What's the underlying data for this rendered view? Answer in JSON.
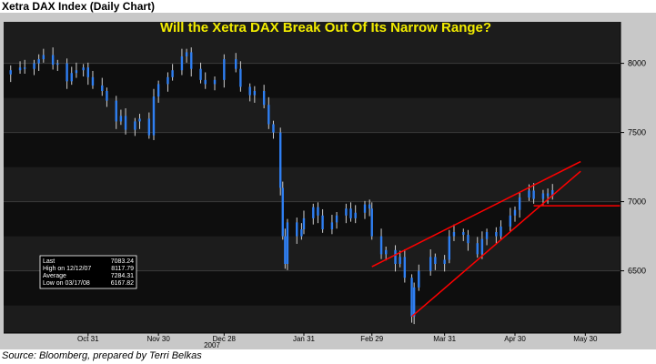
{
  "header": {
    "title": "Xetra DAX Index (Daily Chart)"
  },
  "footer": {
    "source": "Source: Bloomberg, prepared by Terri Belkas"
  },
  "chart_data": {
    "type": "candlestick",
    "title": "Will the Xetra DAX Break Out Of Its Narrow Range?",
    "xlabel": "",
    "ylabel": "",
    "ylim": [
      6050,
      8300
    ],
    "yticks": [
      6500,
      7000,
      7500,
      8000
    ],
    "ytick_labels": [
      "6500",
      "7000",
      "7500",
      "8000"
    ],
    "xticks": [
      {
        "date": "2007-10-31",
        "label": "Oct 31"
      },
      {
        "date": "2007-11-30",
        "label": "Nov 30"
      },
      {
        "date": "2007-12-28",
        "label": "Dec 28"
      },
      {
        "date": "2008-01-31",
        "label": "Jan 31"
      },
      {
        "date": "2008-02-29",
        "label": "Feb 29"
      },
      {
        "date": "2008-03-31",
        "label": "Mar 31"
      },
      {
        "date": "2008-04-30",
        "label": "Apr 30"
      },
      {
        "date": "2008-05-30",
        "label": "May 30"
      }
    ],
    "year_label": "2007",
    "xlim": [
      "2007-09-25",
      "2008-06-14"
    ],
    "stats": [
      {
        "label": "Last",
        "value": "7083.24"
      },
      {
        "label": "High on 12/12/07",
        "value": "8117.79"
      },
      {
        "label": "Average",
        "value": "7284.31"
      },
      {
        "label": "Low on 03/17/08",
        "value": "6167.82"
      }
    ],
    "closes": [
      [
        "2007-09-26",
        7920
      ],
      [
        "2007-09-28",
        7950
      ],
      [
        "2007-10-02",
        7970
      ],
      [
        "2007-10-04",
        7960
      ],
      [
        "2007-10-08",
        8000
      ],
      [
        "2007-10-10",
        8030
      ],
      [
        "2007-10-12",
        8060
      ],
      [
        "2007-10-16",
        7990
      ],
      [
        "2007-10-18",
        8000
      ],
      [
        "2007-10-22",
        7870
      ],
      [
        "2007-10-24",
        7930
      ],
      [
        "2007-10-26",
        7950
      ],
      [
        "2007-10-29",
        7970
      ],
      [
        "2007-10-31",
        7900
      ],
      [
        "2007-11-02",
        7840
      ],
      [
        "2007-11-06",
        7800
      ],
      [
        "2007-11-08",
        7730
      ],
      [
        "2007-11-12",
        7580
      ],
      [
        "2007-11-14",
        7620
      ],
      [
        "2007-11-16",
        7520
      ],
      [
        "2007-11-20",
        7580
      ],
      [
        "2007-11-22",
        7600
      ],
      [
        "2007-11-26",
        7480
      ],
      [
        "2007-11-28",
        7760
      ],
      [
        "2007-11-30",
        7850
      ],
      [
        "2007-12-04",
        7900
      ],
      [
        "2007-12-06",
        7950
      ],
      [
        "2007-12-10",
        8050
      ],
      [
        "2007-12-12",
        8080
      ],
      [
        "2007-12-14",
        7960
      ],
      [
        "2007-12-18",
        7880
      ],
      [
        "2007-12-20",
        7850
      ],
      [
        "2007-12-24",
        7880
      ],
      [
        "2007-12-28",
        8030
      ],
      [
        "2008-01-02",
        7960
      ],
      [
        "2008-01-04",
        7830
      ],
      [
        "2008-01-08",
        7770
      ],
      [
        "2008-01-10",
        7800
      ],
      [
        "2008-01-14",
        7700
      ],
      [
        "2008-01-16",
        7560
      ],
      [
        "2008-01-18",
        7500
      ],
      [
        "2008-01-21",
        7100
      ],
      [
        "2008-01-22",
        6750
      ],
      [
        "2008-01-23",
        6550
      ],
      [
        "2008-01-24",
        6850
      ],
      [
        "2008-01-28",
        6750
      ],
      [
        "2008-01-30",
        6800
      ],
      [
        "2008-01-31",
        6880
      ],
      [
        "2008-02-04",
        6960
      ],
      [
        "2008-02-06",
        6900
      ],
      [
        "2008-02-08",
        6800
      ],
      [
        "2008-02-12",
        6850
      ],
      [
        "2008-02-14",
        6900
      ],
      [
        "2008-02-18",
        6950
      ],
      [
        "2008-02-20",
        6880
      ],
      [
        "2008-02-22",
        6920
      ],
      [
        "2008-02-26",
        6980
      ],
      [
        "2008-02-28",
        6950
      ],
      [
        "2008-02-29",
        6750
      ],
      [
        "2008-03-04",
        6620
      ],
      [
        "2008-03-06",
        6650
      ],
      [
        "2008-03-10",
        6550
      ],
      [
        "2008-03-12",
        6600
      ],
      [
        "2008-03-14",
        6450
      ],
      [
        "2008-03-17",
        6170
      ],
      [
        "2008-03-18",
        6380
      ],
      [
        "2008-03-20",
        6500
      ],
      [
        "2008-03-25",
        6600
      ],
      [
        "2008-03-27",
        6550
      ],
      [
        "2008-03-31",
        6580
      ],
      [
        "2008-04-02",
        6750
      ],
      [
        "2008-04-04",
        6780
      ],
      [
        "2008-04-08",
        6760
      ],
      [
        "2008-04-10",
        6700
      ],
      [
        "2008-04-14",
        6620
      ],
      [
        "2008-04-16",
        6730
      ],
      [
        "2008-04-18",
        6780
      ],
      [
        "2008-04-22",
        6750
      ],
      [
        "2008-04-24",
        6820
      ],
      [
        "2008-04-28",
        6900
      ],
      [
        "2008-04-30",
        6940
      ],
      [
        "2008-05-02",
        7030
      ],
      [
        "2008-05-06",
        7080
      ],
      [
        "2008-05-08",
        7020
      ],
      [
        "2008-05-12",
        7060
      ],
      [
        "2008-05-14",
        7040
      ],
      [
        "2008-05-16",
        7083
      ]
    ],
    "colors": {
      "background": "#000000",
      "bands": [
        "#1c1c1c",
        "#0e0e0e"
      ],
      "grid": "#3a3a3a",
      "candle": "#2f7ff2",
      "wick": "#cfcfcf",
      "title": "#f2ec00",
      "trendline": "#ff0000",
      "axis_text": "#dddddd"
    },
    "trendlines": [
      {
        "from": [
          "2008-02-29",
          6530
        ],
        "to": [
          "2008-05-28",
          7290
        ]
      },
      {
        "from": [
          "2008-03-17",
          6170
        ],
        "to": [
          "2008-05-28",
          7220
        ]
      },
      {
        "from": [
          "2008-05-08",
          6970
        ],
        "to": [
          "2008-06-14",
          6970
        ]
      }
    ]
  }
}
